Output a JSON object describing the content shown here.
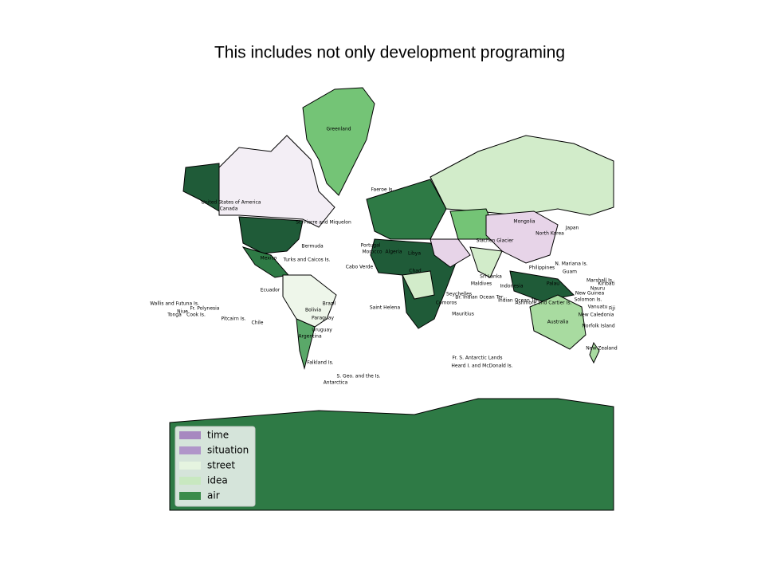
{
  "title": "This includes not only development programing",
  "legend": [
    {
      "name": "time",
      "color": "#a788c0"
    },
    {
      "name": "situation",
      "color": "#b095c9"
    },
    {
      "name": "street",
      "color": "#e5f4e0"
    },
    {
      "name": "idea",
      "color": "#c8e8c0"
    },
    {
      "name": "air",
      "color": "#3b8c4b"
    }
  ],
  "labels": [
    "Greenland",
    "Faeroe Is.",
    "United States of America",
    "Canada",
    "St. Pierre and Miquelon",
    "Bermuda",
    "Mexico",
    "Turks and Caicos Is.",
    "Brazil",
    "Bolivia",
    "Paraguay",
    "Uruguay",
    "Argentina",
    "Chile",
    "Falkland Is.",
    "S. Geo. and the Is.",
    "Antarctica",
    "Wallis and Futuna Is.",
    "Fr. Polynesia",
    "Niue",
    "Tonga",
    "Cook Is.",
    "Pitcairn Is.",
    "Saint Helena",
    "Portugal",
    "Morocco",
    "Algeria",
    "Libya",
    "Chad",
    "Cabo Verde",
    "Seychelles",
    "Br. Indian Ocean Ter.",
    "Maldives",
    "Sri Lanka",
    "Mauritius",
    "Comoros",
    "Fr. S. Antarctic Lands",
    "Heard I. and McDonald Is.",
    "Mongolia",
    "Japan",
    "North Korea",
    "Siachen Glacier",
    "Philippines",
    "Palau",
    "Guam",
    "N. Mariana Is.",
    "Marshall Is.",
    "Nauru",
    "Kiribati",
    "New Guinea",
    "Solomon Is.",
    "Vanuatu",
    "New Caledonia",
    "Fiji",
    "Australia",
    "Norfolk Island",
    "New Zealand",
    "Indonesia",
    "Indian Ocean Ter.",
    "Ashmore and Cartier Is.",
    "Ecuador"
  ]
}
